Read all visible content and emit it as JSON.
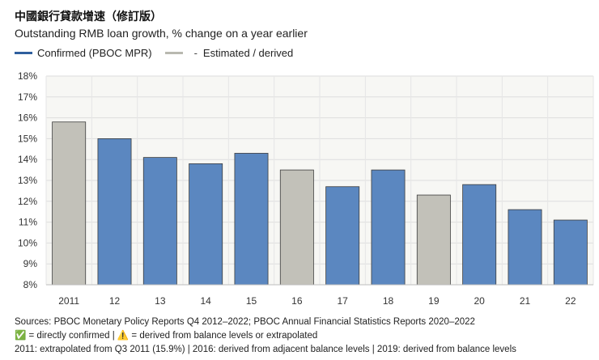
{
  "title": "中國銀行貸款增速（修訂版）",
  "subtitle": "Outstanding RMB loan growth, % change on a year earlier",
  "legend": {
    "confirmed": {
      "label": "Confirmed (PBOC MPR)",
      "color": "#2f5f9e"
    },
    "estimated": {
      "label": "Estimated / derived",
      "dash": "-",
      "color": "#b9b9b0"
    }
  },
  "chart_data": {
    "type": "bar",
    "title": "中國銀行貸款增速（修訂版）",
    "ylabel": "% change on a year earlier",
    "xlabel": "",
    "categories": [
      "2011",
      "12",
      "13",
      "14",
      "15",
      "16",
      "17",
      "18",
      "19",
      "20",
      "21",
      "22"
    ],
    "values": [
      15.8,
      15.0,
      14.1,
      13.8,
      14.3,
      13.5,
      12.7,
      13.5,
      12.3,
      12.8,
      11.6,
      11.1
    ],
    "status": [
      "estimated",
      "confirmed",
      "confirmed",
      "confirmed",
      "confirmed",
      "estimated",
      "confirmed",
      "confirmed",
      "estimated",
      "confirmed",
      "confirmed",
      "confirmed"
    ],
    "colors": {
      "confirmed": "#5b87c0",
      "estimated": "#c2c1b9"
    },
    "ylim": [
      8,
      18
    ],
    "yticks": [
      8,
      9,
      10,
      11,
      12,
      13,
      14,
      15,
      16,
      17,
      18
    ],
    "ytick_labels": [
      "8%",
      "9%",
      "10%",
      "11%",
      "12%",
      "13%",
      "14%",
      "15%",
      "16%",
      "17%",
      "18%"
    ],
    "grid": true,
    "legend_position": "top-left"
  },
  "footer": {
    "sources": "Sources: PBOC Monetary Policy Reports Q4 2012–2022; PBOC Annual Financial Statistics Reports 2020–2022",
    "key": "✅ = directly confirmed | ⚠️ = derived from balance levels or extrapolated",
    "notes": "2011: extrapolated from Q3 2011 (15.9%) | 2016: derived from adjacent balance levels | 2019: derived from balance levels"
  }
}
